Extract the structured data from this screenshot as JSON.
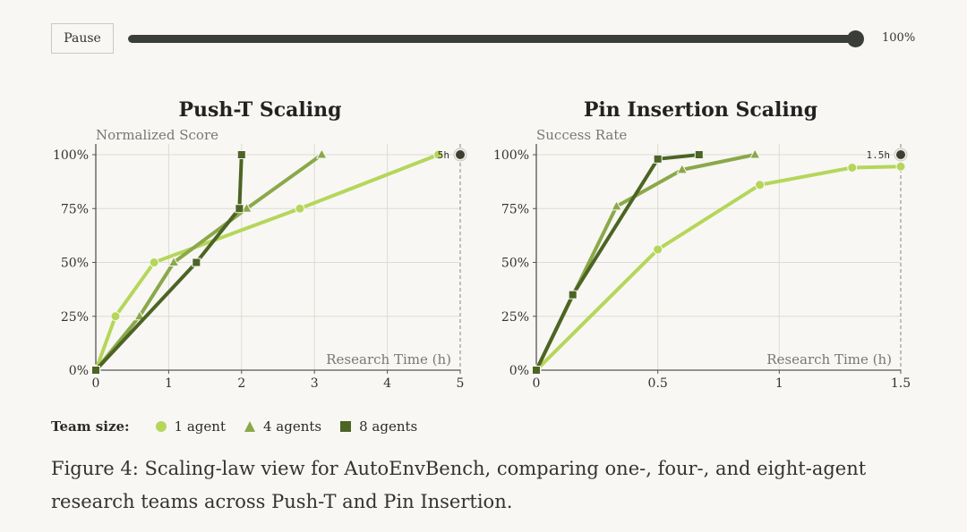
{
  "player": {
    "pause_label": "Pause",
    "progress": 1.0,
    "progress_label": "100%"
  },
  "legend": {
    "title": "Team size:",
    "items": [
      {
        "label": "1 agent",
        "marker": "circle",
        "color": "#b5d65a"
      },
      {
        "label": "4 agents",
        "marker": "triangle",
        "color": "#8ba84a"
      },
      {
        "label": "8 agents",
        "marker": "square",
        "color": "#4c6424"
      }
    ]
  },
  "caption": "Figure 4: Scaling-law view for AutoEnvBench, comparing one-, four-, and eight-agent research teams across Push-T and Pin Insertion.",
  "chart_data": [
    {
      "type": "line",
      "title": "Push-T Scaling",
      "ylabel": "Normalized Score",
      "xlabel": "Research Time (h)",
      "xlim": [
        0,
        5
      ],
      "ylim": [
        0,
        100
      ],
      "xticks": [
        0,
        1,
        2,
        3,
        4,
        5
      ],
      "xtick_labels": [
        "0",
        "1",
        "2",
        "3",
        "4",
        "5"
      ],
      "yticks": [
        0,
        25,
        50,
        75,
        100
      ],
      "ytick_labels": [
        "0%",
        "25%",
        "50%",
        "75%",
        "100%"
      ],
      "grid": true,
      "limit_marker": {
        "x": 5,
        "y": 100,
        "label": "5h"
      },
      "series": [
        {
          "name": "1 agent",
          "marker": "circle",
          "color": "#b5d65a",
          "x": [
            0,
            0.27,
            0.8,
            2.8,
            4.7
          ],
          "y": [
            0,
            25,
            50,
            75,
            100
          ]
        },
        {
          "name": "4 agents",
          "marker": "triangle",
          "color": "#8ba84a",
          "x": [
            0,
            0.6,
            1.07,
            2.07,
            3.1
          ],
          "y": [
            0,
            25,
            50,
            75,
            100
          ]
        },
        {
          "name": "8 agents",
          "marker": "square",
          "color": "#4c6424",
          "x": [
            0,
            1.38,
            1.97,
            2.0
          ],
          "y": [
            0,
            50,
            75,
            100
          ]
        }
      ]
    },
    {
      "type": "line",
      "title": "Pin Insertion Scaling",
      "ylabel": "Success Rate",
      "xlabel": "Research Time (h)",
      "xlim": [
        0,
        1.5
      ],
      "ylim": [
        0,
        100
      ],
      "xticks": [
        0,
        0.5,
        1,
        1.5
      ],
      "xtick_labels": [
        "0",
        "0.5",
        "1",
        "1.5"
      ],
      "yticks": [
        0,
        25,
        50,
        75,
        100
      ],
      "ytick_labels": [
        "0%",
        "25%",
        "50%",
        "75%",
        "100%"
      ],
      "grid": true,
      "limit_marker": {
        "x": 1.5,
        "y": 100,
        "label": "1.5h"
      },
      "series": [
        {
          "name": "1 agent",
          "marker": "circle",
          "color": "#b5d65a",
          "x": [
            0,
            0.5,
            0.92,
            1.3,
            1.5
          ],
          "y": [
            0,
            56,
            86,
            94,
            94.5
          ]
        },
        {
          "name": "4 agents",
          "marker": "triangle",
          "color": "#8ba84a",
          "x": [
            0,
            0.33,
            0.6,
            0.9
          ],
          "y": [
            0,
            76,
            93,
            100
          ]
        },
        {
          "name": "8 agents",
          "marker": "square",
          "color": "#4c6424",
          "x": [
            0,
            0.15,
            0.5,
            0.67
          ],
          "y": [
            0,
            35,
            98,
            100
          ]
        }
      ]
    }
  ]
}
